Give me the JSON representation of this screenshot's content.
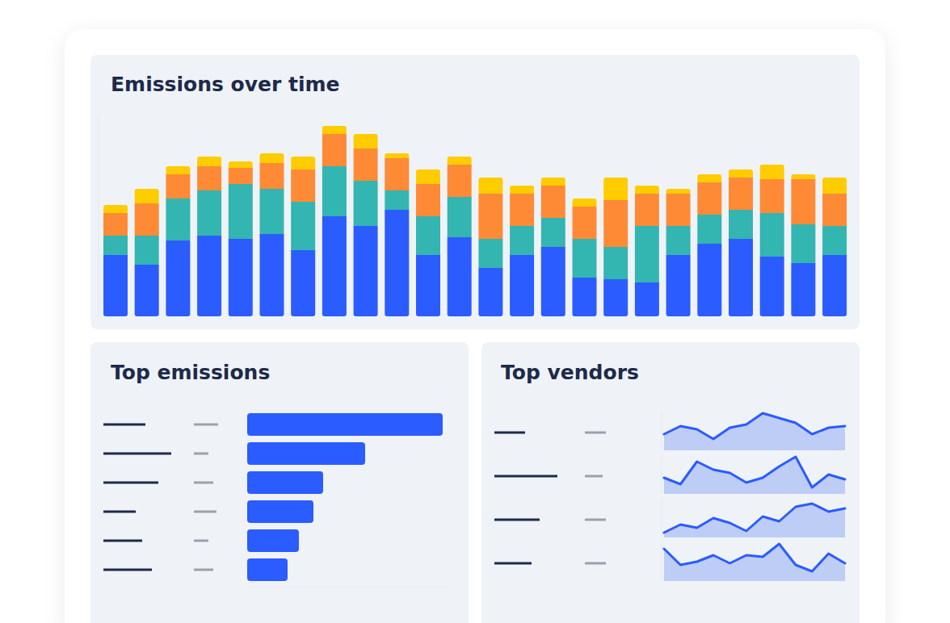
{
  "chart_data": [
    {
      "type": "bar",
      "title": "Emissions over time",
      "stacked": true,
      "grid": false,
      "tick_labels": false,
      "categories": [
        null,
        null,
        null,
        null,
        null,
        null,
        null,
        null,
        null,
        null,
        null,
        null,
        null,
        null,
        null,
        null,
        null,
        null,
        null,
        null,
        null,
        null,
        null,
        null
      ],
      "ylim": [
        0,
        250
      ],
      "series": [
        {
          "color": "#2b5cff",
          "values": [
            76,
            64,
            94,
            100,
            96,
            102,
            82,
            124,
            112,
            132,
            76,
            98,
            60,
            76,
            86,
            48,
            46,
            42,
            76,
            90,
            96,
            74,
            66,
            76
          ]
        },
        {
          "color": "#33b5b1",
          "values": [
            24,
            36,
            52,
            56,
            68,
            56,
            60,
            62,
            56,
            24,
            48,
            50,
            36,
            36,
            36,
            48,
            40,
            70,
            36,
            36,
            36,
            54,
            48,
            36
          ]
        },
        {
          "color": "#ff8a36",
          "values": [
            28,
            40,
            30,
            30,
            20,
            32,
            40,
            40,
            40,
            40,
            40,
            40,
            56,
            40,
            40,
            40,
            58,
            40,
            40,
            40,
            40,
            42,
            56,
            40
          ]
        },
        {
          "color": "#ffcc00",
          "values": [
            10,
            18,
            10,
            12,
            8,
            12,
            16,
            10,
            18,
            6,
            18,
            10,
            20,
            10,
            10,
            10,
            28,
            10,
            6,
            10,
            10,
            18,
            6,
            20
          ]
        }
      ]
    },
    {
      "type": "bar",
      "title": "Top emissions",
      "orientation": "horizontal",
      "grid": false,
      "tick_labels": false,
      "categories": [
        null,
        null,
        null,
        null,
        null,
        null
      ],
      "xlim": [
        0,
        250
      ],
      "color": "#2b5cff",
      "values": [
        242,
        146,
        94,
        82,
        64,
        50
      ]
    },
    {
      "type": "area",
      "title": "Top vendors",
      "grid": false,
      "tick_labels": false,
      "categories": [
        null,
        null,
        null,
        null,
        null,
        null,
        null,
        null,
        null,
        null,
        null,
        null
      ],
      "ylim": [
        0,
        50
      ],
      "series": [
        {
          "color": "#2b5cff",
          "values": [
            20,
            30,
            26,
            14,
            28,
            32,
            46,
            40,
            34,
            20,
            28,
            30
          ]
        },
        {
          "color": "#2b5cff",
          "values": [
            20,
            12,
            40,
            30,
            26,
            14,
            20,
            34,
            46,
            8,
            24,
            18
          ]
        },
        {
          "color": "#2b5cff",
          "values": [
            6,
            16,
            12,
            24,
            18,
            8,
            26,
            20,
            38,
            42,
            32,
            36
          ]
        },
        {
          "color": "#2b5cff",
          "values": [
            40,
            20,
            24,
            32,
            22,
            32,
            30,
            46,
            20,
            12,
            34,
            22
          ]
        }
      ]
    }
  ]
}
